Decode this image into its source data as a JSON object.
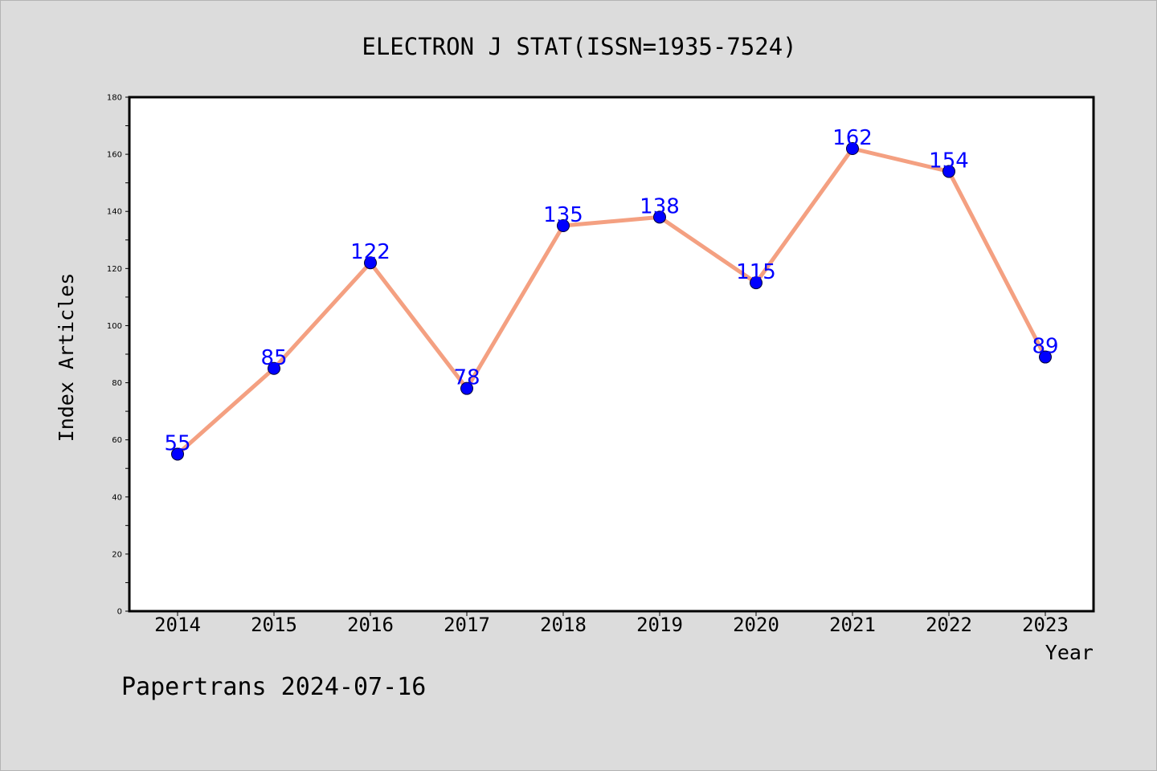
{
  "colors": {
    "background": "#dcdcdc",
    "plot_background": "#ffffff",
    "line": "#f4a081",
    "marker": "#0000ff",
    "data_label": "#0000ff",
    "text": "#000000"
  },
  "footer": {
    "credit": "Papertrans 2024-07-16"
  },
  "chart_data": {
    "type": "line",
    "title": "ELECTRON J STAT(ISSN=1935-7524)",
    "xlabel": "Year",
    "ylabel": "Index Articles",
    "categories": [
      "2014",
      "2015",
      "2016",
      "2017",
      "2018",
      "2019",
      "2020",
      "2021",
      "2022",
      "2023"
    ],
    "values": [
      55,
      85,
      122,
      78,
      135,
      138,
      115,
      162,
      154,
      89
    ],
    "ylim": [
      0,
      180
    ],
    "yticks": [
      "0",
      "20",
      "40",
      "60",
      "80",
      "100",
      "120",
      "140",
      "160",
      "180"
    ],
    "grid": false,
    "legend": "none"
  }
}
